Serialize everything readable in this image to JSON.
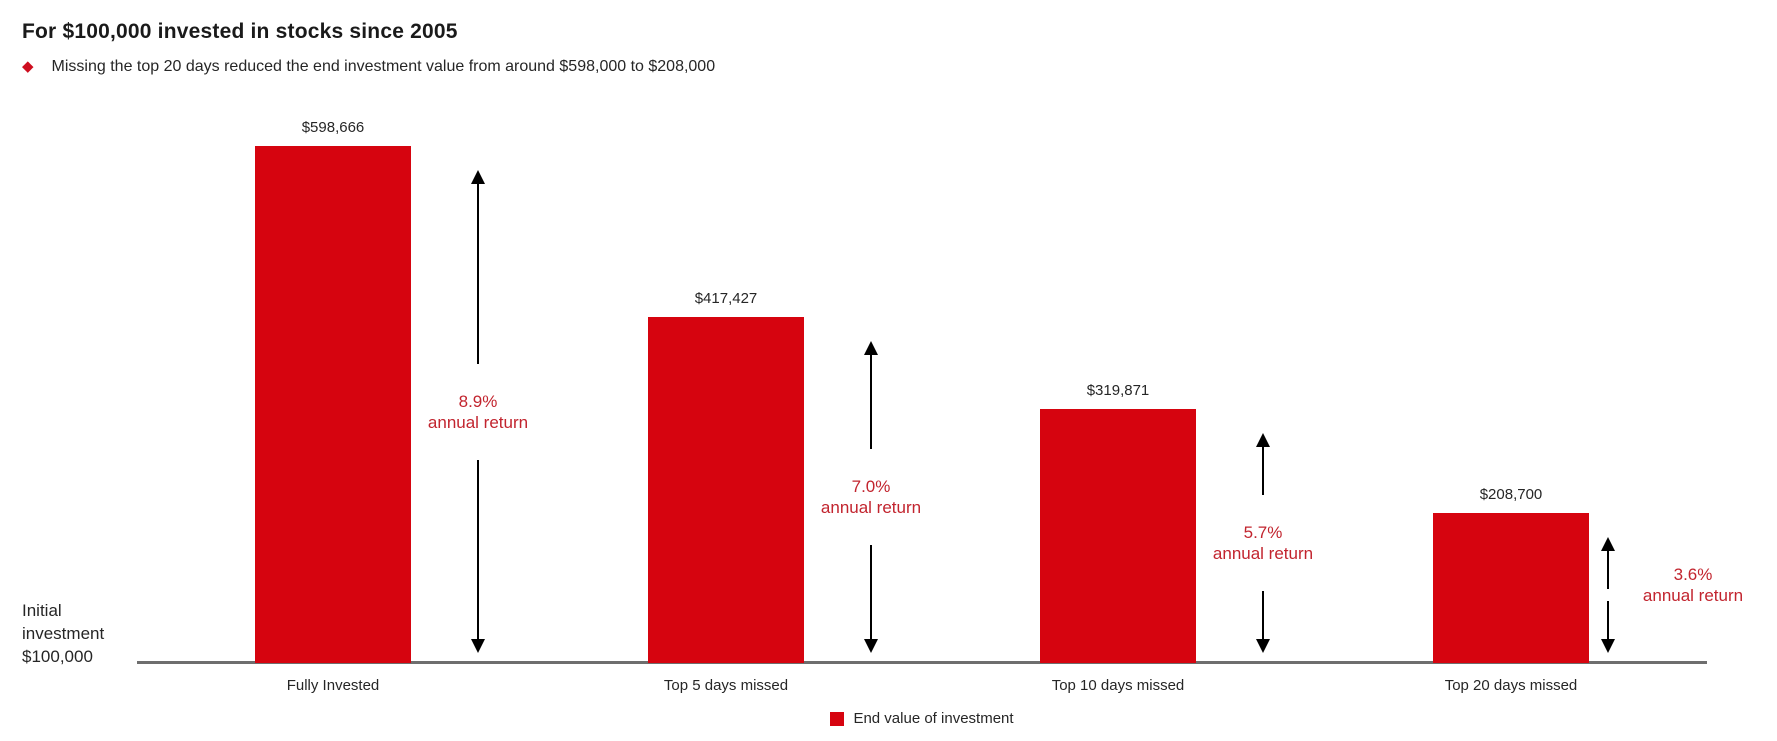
{
  "header": {
    "title": "For $100,000 invested in stocks since 2005",
    "bullet_text": "Missing the top 20 days reduced the end investment value from around $598,000 to $208,000",
    "bullet_icon": "diamond-icon"
  },
  "axis": {
    "baseline_annotation_lines": [
      "Initial",
      "investment",
      "$100,000"
    ]
  },
  "legend": {
    "label": "End value of investment",
    "swatch_icon": "red-square-icon"
  },
  "colors": {
    "bar_red": "#d6040f",
    "return_text_red": "#c2242e",
    "diamond_red": "#ce0e1f",
    "axis_gray": "#6e6e6e",
    "text_dark": "#262626",
    "title_black": "#1a1a1a",
    "arrow_black": "#000000"
  },
  "chart_data": {
    "type": "bar",
    "title": "For $100,000 invested in stocks since 2005",
    "subtitle": "Missing the top 20 days reduced the end investment value from around $598,000 to $208,000",
    "categories": [
      "Fully Invested",
      "Top 5 days missed",
      "Top 10 days missed",
      "Top 20 days missed"
    ],
    "values": [
      598666,
      417427,
      319871,
      208700
    ],
    "value_labels": [
      "$598,666",
      "$417,427",
      "$319,871",
      "$208,700"
    ],
    "annual_returns": [
      "8.9%",
      "7.0%",
      "5.7%",
      "3.6%"
    ],
    "return_suffix": "annual return",
    "baseline_annotation": "Initial investment $100,000",
    "initial_investment": 100000,
    "legend": [
      "End value of investment"
    ],
    "legend_position": "bottom-center",
    "xlabel": "",
    "ylabel": "",
    "ylim": [
      50000,
      620000
    ],
    "grid": false,
    "bar_color": "#d6040f",
    "annotation_style": "double-headed vertical arrows between bars showing annualized return"
  }
}
